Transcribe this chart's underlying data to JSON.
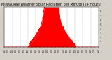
{
  "title": "Milwaukee Weather Solar Radiation per Minute (24 Hours)",
  "title_fontsize": 3.5,
  "bg_color": "#d4d0c8",
  "plot_bg_color": "#ffffff",
  "line_color": "#ff0000",
  "fill_color": "#ff0000",
  "grid_color": "#888888",
  "ylim": [
    0,
    900
  ],
  "num_minutes": 1440,
  "peak_minute": 720,
  "peak_value": 780,
  "dawn_minute": 360,
  "dusk_minute": 1100
}
